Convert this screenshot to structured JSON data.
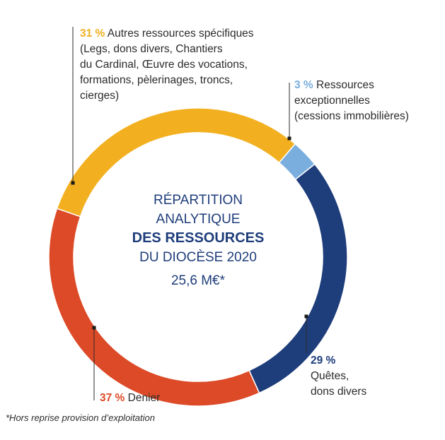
{
  "chart_data": {
    "type": "pie",
    "variant": "donut",
    "title_lines": [
      "RÉPARTITION",
      "ANALYTIQUE",
      "DES RESSOURCES",
      "DU DIOCÈSE 2020"
    ],
    "total": "25,6 M€*",
    "slices": [
      {
        "key": "autres",
        "value": 31,
        "pct_label": "31 %",
        "color": "#f2b021",
        "text": [
          "Autres ressources spécifiques",
          "(Legs, dons divers, Chantiers",
          "du Cardinal, Œuvre des vocations,",
          "formations, pèlerinages, troncs,",
          "cierges)"
        ]
      },
      {
        "key": "exceptionnelles",
        "value": 3,
        "pct_label": "3 %",
        "color": "#7aaede",
        "text": [
          "Ressources",
          "exceptionnelles",
          "(cessions immobilières)"
        ]
      },
      {
        "key": "quetes",
        "value": 29,
        "pct_label": "29 %",
        "color": "#1e3d7b",
        "text": [
          "Quêtes,",
          "dons divers"
        ]
      },
      {
        "key": "denier",
        "value": 37,
        "pct_label": "37 %",
        "color": "#dc4a27",
        "text": [
          "Denier"
        ]
      }
    ]
  },
  "footnote": "*Hors reprise provision d’exploitation"
}
